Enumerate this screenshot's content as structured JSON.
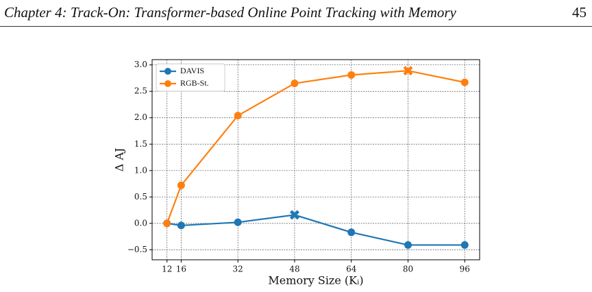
{
  "header": {
    "title": "Chapter 4: Track-On: Transformer-based Online Point Tracking with Memory",
    "page_number": "45"
  },
  "chart_data": {
    "type": "line",
    "x": [
      12,
      16,
      32,
      48,
      64,
      80,
      96
    ],
    "xlabel": "Memory Size (Kᵢ)",
    "ylabel": "Δ AJ",
    "xlim": [
      7.8,
      100.2
    ],
    "ylim": [
      -0.69,
      3.1
    ],
    "xticks": [
      12,
      16,
      32,
      48,
      64,
      80,
      96
    ],
    "yticks": [
      {
        "value": -0.5,
        "label": "−0.5"
      },
      {
        "value": 0,
        "label": "0.0"
      },
      0.5,
      {
        "value": 1,
        "label": "1.0"
      },
      1.5,
      {
        "value": 2,
        "label": "2.0"
      },
      2.5,
      {
        "value": 3,
        "label": "3.0"
      }
    ],
    "grid": true,
    "legend": "upper-left",
    "series": [
      {
        "name": "DAVIS",
        "color": "#1f77b4",
        "values": [
          0,
          -0.04,
          0.02,
          0.16,
          -0.17,
          -0.41,
          -0.41
        ],
        "best_x": 48
      },
      {
        "name": "RGB-St.",
        "color": "#ff7f0e",
        "values": [
          0,
          0.72,
          2.04,
          2.65,
          2.81,
          2.89,
          2.67
        ],
        "best_x": 80
      }
    ]
  }
}
